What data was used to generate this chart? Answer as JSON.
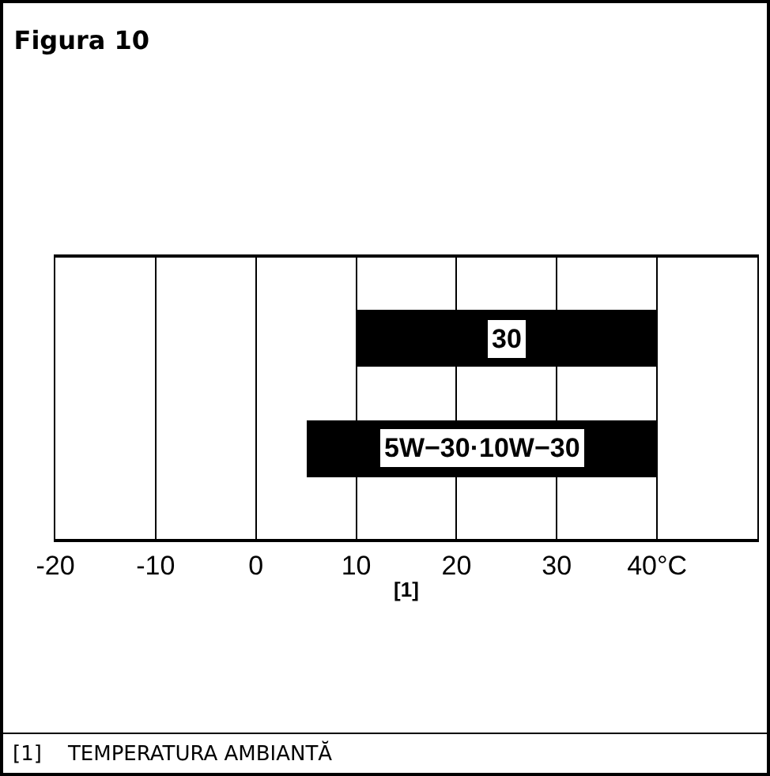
{
  "chart_data": {
    "type": "bar",
    "orientation": "horizontal",
    "title": "Figura 10",
    "xlabel": "[1]",
    "categories": [
      "30",
      "5W−30·10W−30"
    ],
    "base": [
      10,
      5
    ],
    "values": [
      30,
      35
    ],
    "color": "#000000",
    "xlim": [
      -20,
      50
    ],
    "xticks": [
      -20,
      -10,
      0,
      10,
      20,
      30,
      {
        "value": 40,
        "label": "40°C"
      }
    ],
    "grid": "x",
    "tick_labels": "x",
    "annotations": [
      "[1]    TEMPERATURA AMBIANTĂ"
    ]
  }
}
